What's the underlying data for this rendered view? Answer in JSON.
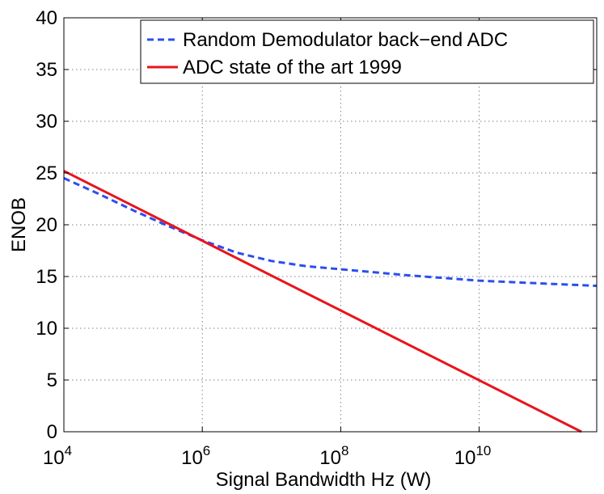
{
  "chart_data": {
    "type": "line",
    "xscale": "log",
    "xlim": [
      10000,
      500000000000
    ],
    "ylim": [
      0,
      40
    ],
    "xlabel": "Signal Bandwidth Hz (W)",
    "ylabel": "ENOB",
    "grid": true,
    "legend_position": "top-right",
    "x_ticks": [
      {
        "value": 10000,
        "base": "10",
        "exp": "4"
      },
      {
        "value": 1000000,
        "base": "10",
        "exp": "6"
      },
      {
        "value": 100000000,
        "base": "10",
        "exp": "8"
      },
      {
        "value": 10000000000,
        "base": "10",
        "exp": "10"
      }
    ],
    "y_ticks": [
      "0",
      "5",
      "10",
      "15",
      "20",
      "25",
      "30",
      "35",
      "40"
    ],
    "series": [
      {
        "name": "Random Demodulator back−end ADC",
        "color": "#2b4ef0",
        "style": "dashed",
        "x": [
          10000,
          31600,
          100000,
          316000,
          1000000,
          3160000,
          10000000,
          31600000,
          100000000,
          1000000000,
          10000000000,
          100000000000,
          500000000000
        ],
        "y": [
          24.5,
          23.0,
          21.4,
          19.9,
          18.5,
          17.3,
          16.5,
          16.0,
          15.7,
          15.1,
          14.6,
          14.3,
          14.1
        ]
      },
      {
        "name": "ADC state of the art 1999",
        "color": "#e8141c",
        "style": "solid",
        "x": [
          10000,
          300000000000
        ],
        "y": [
          25.2,
          0
        ]
      }
    ]
  }
}
